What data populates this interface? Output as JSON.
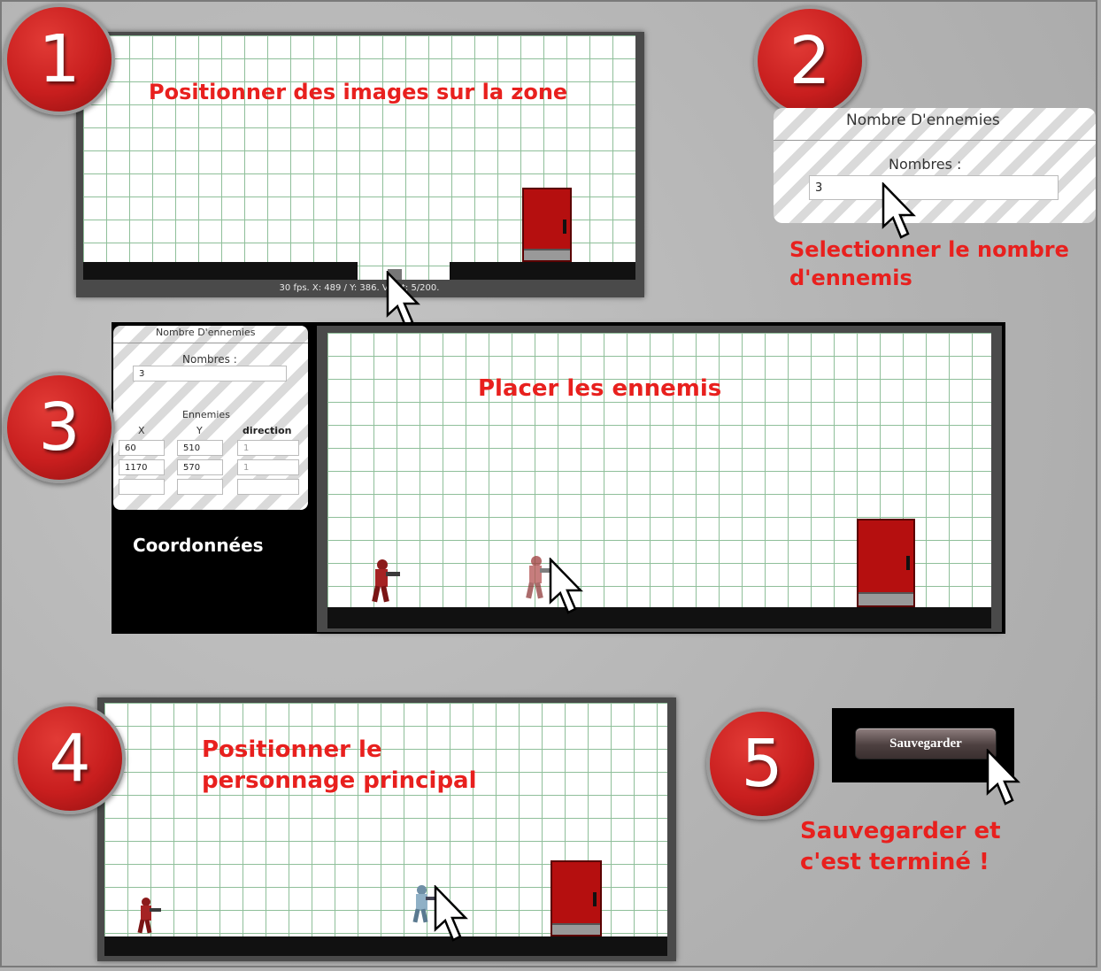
{
  "steps": [
    {
      "number": "1",
      "caption": "Positionner des images sur la zone"
    },
    {
      "number": "2",
      "caption_line1": "Selectionner le nombre",
      "caption_line2": "d'ennemis"
    },
    {
      "number": "3",
      "caption": "Placer les ennemis"
    },
    {
      "number": "4",
      "caption_line1": "Positionner le",
      "caption_line2": "personnage principal"
    },
    {
      "number": "5",
      "caption_line1": "Sauvegarder et",
      "caption_line2": "c'est terminé !"
    }
  ],
  "editor_status": "30 fps. X: 489 / Y: 386. Vi... t: 5/200.",
  "enemy_form": {
    "title": "Nombre D'ennemies",
    "count_label": "Nombres :",
    "count_value": "3",
    "enemies_label": "Ennemies",
    "col_x": "X",
    "col_y": "Y",
    "col_direction": "direction",
    "rows": [
      {
        "x": "60",
        "y": "510",
        "direction": "1"
      },
      {
        "x": "1170",
        "y": "570",
        "direction": "1"
      },
      {
        "x": "",
        "y": "",
        "direction": ""
      }
    ]
  },
  "coordinates_label": "Coordonnées",
  "save_button": "Sauvegarder",
  "colors": {
    "accent_red": "#e8201e",
    "door_red": "#b50f0f",
    "badge_red": "#c81e1e"
  }
}
